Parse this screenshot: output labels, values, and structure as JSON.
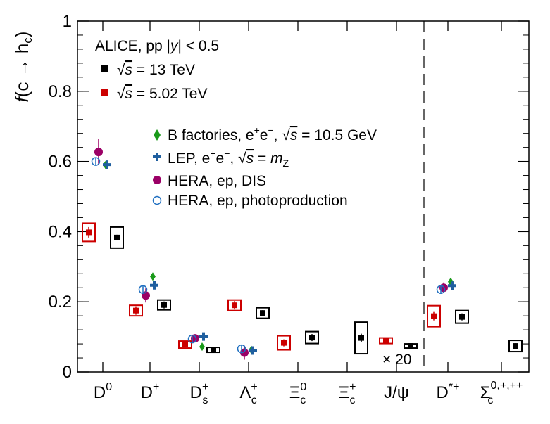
{
  "chart_data": {
    "type": "scatter",
    "ylabel": "f(c → hc)",
    "ylim": [
      0,
      1
    ],
    "yticks": [
      "0",
      "0.2",
      "0.4",
      "0.6",
      "0.8",
      "1"
    ],
    "ytick_values": [
      0,
      0.2,
      0.4,
      0.6,
      0.8,
      1.0
    ],
    "categories": [
      "D0",
      "D+",
      "Ds+",
      "Λc+",
      "Ξc0",
      "Ξc+",
      "J/ψ",
      "D*+",
      "Σc0,+,++"
    ],
    "legend_header": "ALICE, pp |y| < 0.5",
    "legend_top": [
      {
        "label": "√s = 13 TeV",
        "color": "#000000",
        "marker": "square"
      },
      {
        "label": "√s = 5.02 TeV",
        "color": "#cc0000",
        "marker": "square"
      }
    ],
    "legend_middle": [
      {
        "label": "B factories, e+e−, √s = 10.5 GeV",
        "color": "#1a9a1a",
        "marker": "diamond"
      },
      {
        "label": "LEP, e+e−, √s = mZ",
        "color": "#1f5f9f",
        "marker": "cross"
      },
      {
        "label": "HERA, ep, DIS",
        "color": "#9b0066",
        "marker": "circle"
      },
      {
        "label": "HERA, ep, photoproduction",
        "color": "#1f6fc0",
        "marker": "open-circle"
      }
    ],
    "annotation": "× 20",
    "series": [
      {
        "name": "√s = 13 TeV",
        "color": "#000000",
        "marker": "square",
        "points": [
          {
            "cat": 0,
            "y": 0.383,
            "syst": 0.03,
            "stat": 0.008
          },
          {
            "cat": 1,
            "y": 0.191,
            "syst": 0.014,
            "stat": 0.01
          },
          {
            "cat": 2,
            "y": 0.063,
            "syst": 0.007,
            "stat": 0.004
          },
          {
            "cat": 3,
            "y": 0.168,
            "syst": 0.015,
            "stat": 0.008
          },
          {
            "cat": 4,
            "y": 0.098,
            "syst": 0.017,
            "stat": 0.01
          },
          {
            "cat": 5,
            "y": 0.097,
            "syst": 0.045,
            "stat": 0.012
          },
          {
            "cat": 6,
            "y": 0.074,
            "syst": 0.006,
            "stat": 0.002
          },
          {
            "cat": 7,
            "y": 0.157,
            "syst": 0.018,
            "stat": 0.01
          },
          {
            "cat": 8,
            "y": 0.074,
            "syst": 0.016,
            "stat": 0.008
          }
        ]
      },
      {
        "name": "√s = 5.02 TeV",
        "color": "#cc0000",
        "marker": "square",
        "points": [
          {
            "cat": 0,
            "y": 0.398,
            "syst": 0.026,
            "stat": 0.015
          },
          {
            "cat": 1,
            "y": 0.175,
            "syst": 0.015,
            "stat": 0.012
          },
          {
            "cat": 2,
            "y": 0.078,
            "syst": 0.01,
            "stat": 0.006
          },
          {
            "cat": 3,
            "y": 0.19,
            "syst": 0.015,
            "stat": 0.012
          },
          {
            "cat": 4,
            "y": 0.083,
            "syst": 0.02,
            "stat": 0.01
          },
          {
            "cat": 6,
            "y": 0.089,
            "syst": 0.008,
            "stat": 0.003
          },
          {
            "cat": 7,
            "y": 0.159,
            "syst": 0.03,
            "stat": 0.012
          }
        ]
      },
      {
        "name": "B factories, e+e−, √s = 10.5 GeV",
        "color": "#1a9a1a",
        "marker": "diamond",
        "points": [
          {
            "cat": 0,
            "y": 0.59,
            "err": 0.01
          },
          {
            "cat": 1,
            "y": 0.272,
            "err": 0.007
          },
          {
            "cat": 2,
            "y": 0.072,
            "err": 0.005
          },
          {
            "cat": 3,
            "y": 0.063,
            "err": 0.005
          },
          {
            "cat": 7,
            "y": 0.257,
            "err": 0.008
          }
        ]
      },
      {
        "name": "LEP, e+e−, √s = mZ",
        "color": "#1f5f9f",
        "marker": "cross",
        "points": [
          {
            "cat": 0,
            "y": 0.591,
            "err": 0.011
          },
          {
            "cat": 1,
            "y": 0.247,
            "err": 0.008
          },
          {
            "cat": 2,
            "y": 0.101,
            "err": 0.008
          },
          {
            "cat": 3,
            "y": 0.061,
            "err": 0.005
          },
          {
            "cat": 7,
            "y": 0.246,
            "err": 0.01
          }
        ]
      },
      {
        "name": "HERA, ep, DIS",
        "color": "#9b0066",
        "marker": "circle",
        "points": [
          {
            "cat": 0,
            "y": 0.627,
            "err": 0.037
          },
          {
            "cat": 1,
            "y": 0.218,
            "err": 0.02
          },
          {
            "cat": 2,
            "y": 0.096,
            "err": 0.01
          },
          {
            "cat": 3,
            "y": 0.055,
            "err": 0.02
          },
          {
            "cat": 7,
            "y": 0.24,
            "err": 0.015
          }
        ]
      },
      {
        "name": "HERA, ep, photoproduction",
        "color": "#1f6fc0",
        "marker": "open-circle",
        "points": [
          {
            "cat": 0,
            "y": 0.6,
            "err": 0.01
          },
          {
            "cat": 1,
            "y": 0.235,
            "err": 0.01
          },
          {
            "cat": 2,
            "y": 0.094,
            "err": 0.008
          },
          {
            "cat": 3,
            "y": 0.066,
            "err": 0.01
          },
          {
            "cat": 7,
            "y": 0.235,
            "err": 0.01
          }
        ]
      }
    ]
  }
}
